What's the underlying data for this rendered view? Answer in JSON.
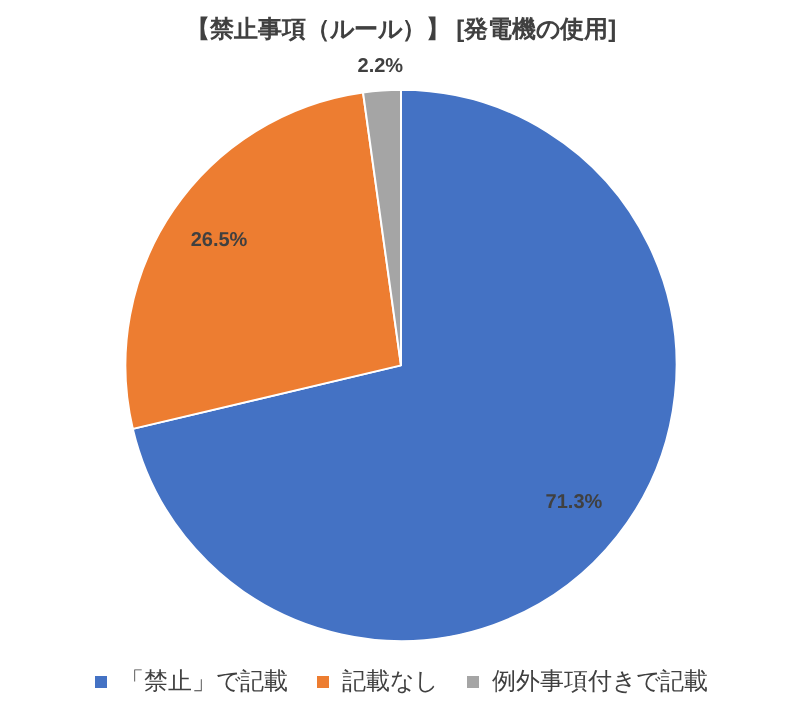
{
  "chart_data": {
    "type": "pie",
    "title": "【禁止事項（ルール）】 [発電機の使用]",
    "categories": [
      "「禁止」で記載",
      "記載なし",
      "例外事項付きで記載"
    ],
    "values": [
      71.3,
      26.5,
      2.2
    ],
    "colors": [
      "#4472c4",
      "#ed7d31",
      "#a5a5a5"
    ],
    "value_labels": [
      "71.3%",
      "26.5%",
      "2.2%"
    ],
    "legend": "bottom"
  }
}
